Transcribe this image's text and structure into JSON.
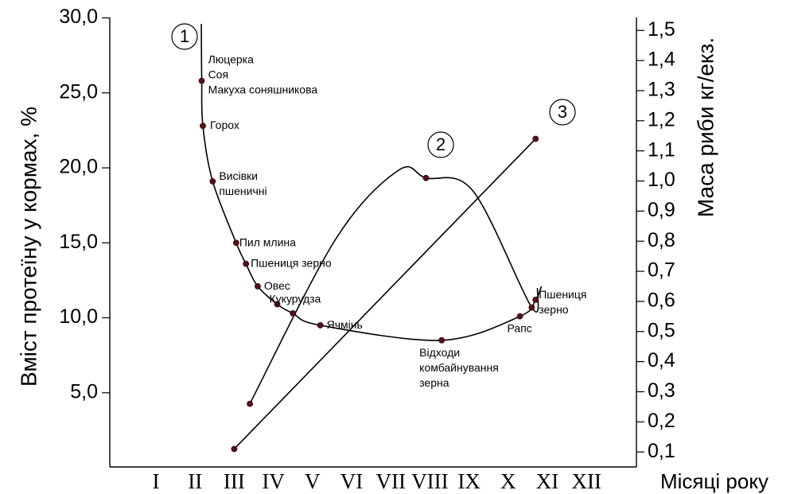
{
  "chart_data": {
    "type": "line",
    "y_left": {
      "label": "Вміст протеїну у кормах, %",
      "ticks": [
        "30,0",
        "25,0",
        "20,0",
        "15,0",
        "10,0",
        "5,0"
      ],
      "tick_values": [
        30,
        25,
        20,
        15,
        10,
        5
      ],
      "range": [
        0,
        30
      ]
    },
    "y_right": {
      "label": "Маса риби кг/екз.",
      "ticks": [
        "1,5",
        "1,4",
        "1,3",
        "1,2",
        "1,1",
        "1,0",
        "0,9",
        "0,8",
        "0,7",
        "0,6",
        "0,5",
        "0,4",
        "0,3",
        "0,2",
        "0,1"
      ],
      "tick_values": [
        1.5,
        1.4,
        1.3,
        1.2,
        1.1,
        1.0,
        0.9,
        0.8,
        0.7,
        0.6,
        0.5,
        0.4,
        0.3,
        0.2,
        0.1
      ],
      "range": [
        0,
        1.5
      ]
    },
    "x_axis": {
      "categories": [
        "I",
        "II",
        "III",
        "IV",
        "V",
        "VI",
        "VII",
        "VIII",
        "IX",
        "X",
        "XI",
        "XII"
      ],
      "title": "Місяці року"
    },
    "curves": [
      {
        "id": "1",
        "label": "1",
        "axis": "left",
        "points": [
          {
            "month": 2.17,
            "value": 25.8,
            "label": "Люцерка\nСоя\nМакуха соняшникова"
          },
          {
            "month": 2.2,
            "value": 22.8,
            "label": "Горох"
          },
          {
            "month": 2.45,
            "value": 19.1,
            "label": "Висівки\nпшеничні"
          },
          {
            "month": 3.05,
            "value": 15.0,
            "label": "Пил млина"
          },
          {
            "month": 3.3,
            "value": 13.6,
            "label": "Пшениця зерно"
          },
          {
            "month": 3.6,
            "value": 12.1,
            "label": "Овес"
          },
          {
            "month": 4.1,
            "value": 10.9,
            "label": "Кукурудза"
          },
          {
            "month": 4.5,
            "value": 10.3,
            "label": ""
          },
          {
            "month": 5.2,
            "value": 9.5,
            "label": "Ячмінь"
          },
          {
            "month": 8.3,
            "value": 8.5,
            "label": "Відходи\nкомбайнування\nзерна"
          },
          {
            "month": 10.3,
            "value": 10.1,
            "label": "Рапс"
          },
          {
            "month": 10.7,
            "value": 11.2,
            "label": "Пшениця\nзерно"
          }
        ]
      },
      {
        "id": "2",
        "label": "2",
        "axis": "right",
        "points": [
          {
            "month": 3.4,
            "value": 0.26
          },
          {
            "month": 7.9,
            "value": 1.01
          },
          {
            "month": 10.6,
            "value": 0.58
          }
        ]
      },
      {
        "id": "3",
        "label": "3",
        "axis": "right",
        "points": [
          {
            "month": 3.0,
            "value": 0.11
          },
          {
            "month": 10.7,
            "value": 1.14
          }
        ]
      }
    ]
  }
}
